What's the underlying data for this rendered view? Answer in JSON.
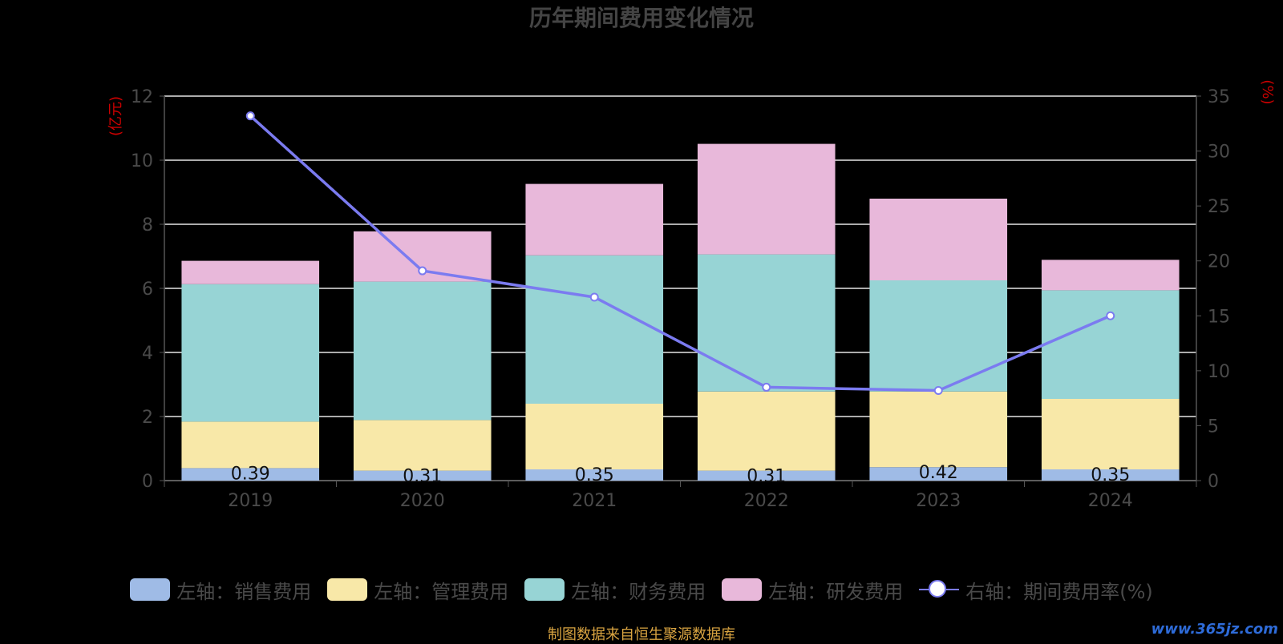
{
  "chart_data": {
    "type": "bar",
    "title": "历年期间费用变化情况",
    "left_axis_unit": "(亿元)",
    "right_axis_unit": "(%)",
    "categories": [
      "2019",
      "2020",
      "2021",
      "2022",
      "2023",
      "2024"
    ],
    "stacked": true,
    "ylim_left": [
      0,
      12
    ],
    "yticks_left": [
      0,
      2,
      4,
      6,
      8,
      10,
      12
    ],
    "ylim_right": [
      0,
      35
    ],
    "yticks_right": [
      0,
      5,
      10,
      15,
      20,
      25,
      30,
      35
    ],
    "grid": true,
    "legend_position": "bottom",
    "series": [
      {
        "name": "左轴：销售费用",
        "axis": "left",
        "kind": "bar",
        "color": "#9fbbe6",
        "values": [
          0.39,
          0.31,
          0.35,
          0.31,
          0.42,
          0.35
        ],
        "show_labels": true
      },
      {
        "name": "左轴：管理费用",
        "axis": "left",
        "kind": "bar",
        "color": "#f8e8a8",
        "values": [
          1.45,
          1.58,
          2.05,
          2.47,
          2.36,
          2.2
        ]
      },
      {
        "name": "左轴：财务费用",
        "axis": "left",
        "kind": "bar",
        "color": "#97d4d5",
        "values": [
          4.29,
          4.32,
          4.63,
          4.28,
          3.47,
          3.39
        ]
      },
      {
        "name": "左轴：研发费用",
        "axis": "left",
        "kind": "bar",
        "color": "#e8b8da",
        "values": [
          0.73,
          1.57,
          2.23,
          3.45,
          2.55,
          0.95
        ]
      },
      {
        "name": "右轴：期间费用率(%)",
        "axis": "right",
        "kind": "line",
        "color": "#7b7bf0",
        "values": [
          33.2,
          19.1,
          16.7,
          8.5,
          8.2,
          15.0
        ]
      }
    ]
  },
  "footer": {
    "source": "制图数据来自恒生聚源数据库",
    "watermark": "www.365jz.com"
  }
}
